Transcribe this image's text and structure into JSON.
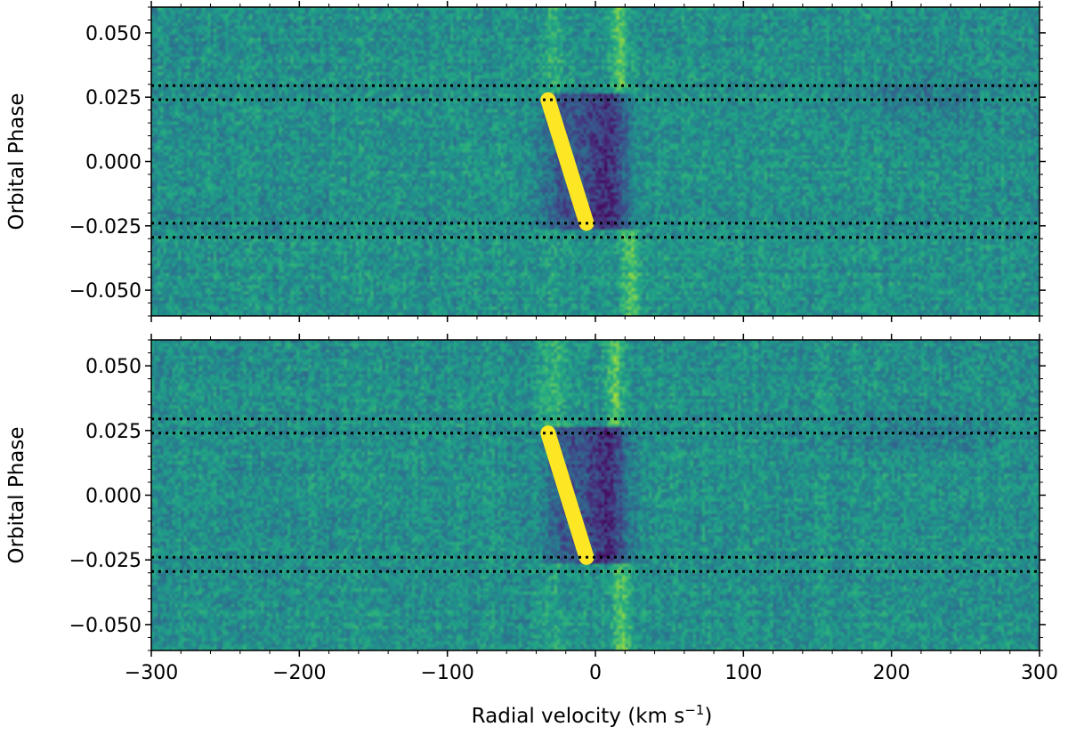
{
  "chart_data": {
    "type": "heatmap",
    "colormap": "viridis",
    "xlabel": "Radial velocity (km s",
    "xlabel_sup": "−1",
    "xlabel_close": ")",
    "xlim": [
      -300,
      300
    ],
    "x_ticks": [
      -300,
      -200,
      -100,
      0,
      100,
      200,
      300
    ],
    "x_tick_labels": [
      "−300",
      "−200",
      "−100",
      "0",
      "100",
      "200",
      "300"
    ],
    "panels": [
      {
        "name": "top",
        "ylabel": "Orbital Phase",
        "ylim": [
          -0.06,
          0.06
        ],
        "y_ticks": [
          -0.05,
          -0.025,
          0.0,
          0.025,
          0.05
        ],
        "y_tick_labels": [
          "−0.050",
          "−0.025",
          "0.000",
          "0.025",
          "0.050"
        ],
        "contact_lines": [
          0.0295,
          0.024,
          -0.024,
          -0.0295
        ],
        "trail": {
          "start": {
            "v": -32,
            "phase": 0.024
          },
          "end": {
            "v": -6,
            "phase": -0.024
          }
        },
        "residual_streak": {
          "v_at_top": 15,
          "v_at_bottom": 25
        },
        "noise_seed": 7
      },
      {
        "name": "bottom",
        "ylabel": "Orbital Phase",
        "ylim": [
          -0.06,
          0.06
        ],
        "y_ticks": [
          -0.05,
          -0.025,
          0.0,
          0.025,
          0.05
        ],
        "y_tick_labels": [
          "−0.050",
          "−0.025",
          "0.000",
          "0.025",
          "0.050"
        ],
        "contact_lines": [
          0.0295,
          0.024,
          -0.024,
          -0.0295
        ],
        "trail": {
          "start": {
            "v": -32,
            "phase": 0.024
          },
          "end": {
            "v": -6,
            "phase": -0.024
          }
        },
        "residual_streak": {
          "v_at_top": 12,
          "v_at_bottom": 18
        },
        "noise_seed": 13
      }
    ],
    "grid": false,
    "legend": "none"
  }
}
